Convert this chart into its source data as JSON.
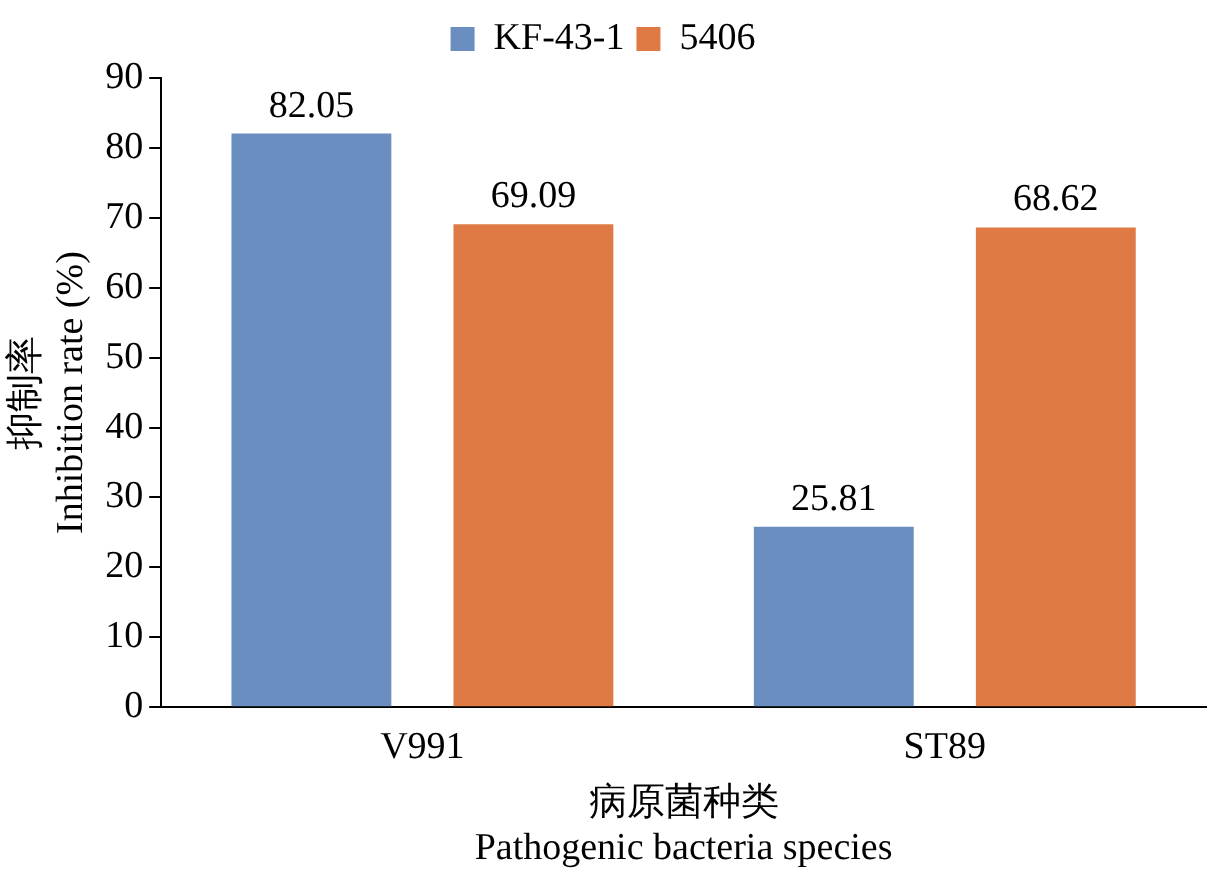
{
  "chart_data": {
    "type": "bar",
    "categories": [
      "V991",
      "ST89"
    ],
    "series": [
      {
        "name": "KF-43-1",
        "color": "#6a8ebf",
        "values": [
          82.05,
          25.81
        ]
      },
      {
        "name": "5406",
        "color": "#e07a45",
        "values": [
          69.09,
          68.62
        ]
      }
    ],
    "ylabel": "抑制率\nInhibition rate (%)",
    "xlabel": "病原菌种类\nPathogenic bacteria species",
    "ylim": [
      0,
      90
    ],
    "yticks": [
      0,
      10,
      20,
      30,
      40,
      50,
      60,
      70,
      80,
      90
    ],
    "grid": false,
    "legend": "top",
    "data_labels": true
  }
}
